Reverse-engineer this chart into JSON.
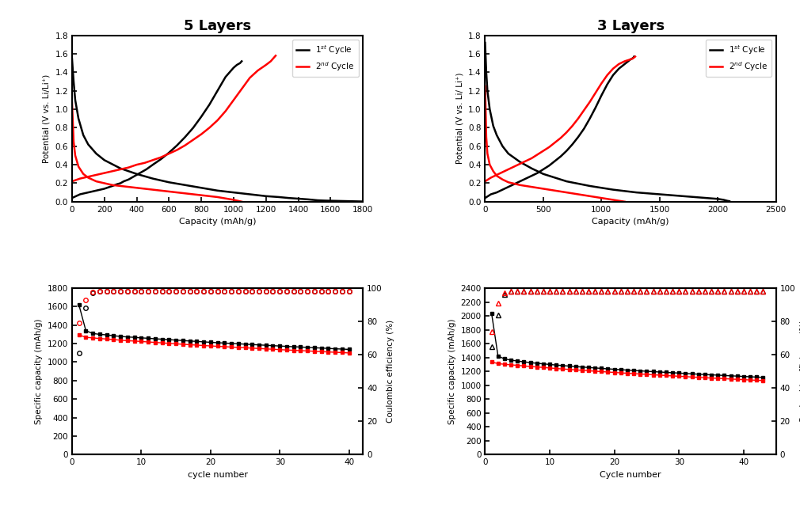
{
  "title_left": "5 Layers",
  "title_right": "3 Layers",
  "panel_top_left": {
    "xlabel": "Capacity (mAh/g)",
    "ylabel": "Potential (V vs. Li/Li⁺)",
    "xlim": [
      0,
      1800
    ],
    "ylim": [
      0.0,
      1.8
    ],
    "xticks": [
      0,
      200,
      400,
      600,
      800,
      1000,
      1200,
      1400,
      1600,
      1800
    ],
    "yticks": [
      0.0,
      0.2,
      0.4,
      0.6,
      0.8,
      1.0,
      1.2,
      1.4,
      1.6,
      1.8
    ],
    "d1x": [
      0,
      10,
      20,
      40,
      70,
      100,
      150,
      200,
      300,
      400,
      500,
      600,
      700,
      800,
      900,
      1000,
      1100,
      1200,
      1280,
      1340,
      1380,
      1420,
      1460,
      1490,
      1520,
      1560,
      1600,
      1650,
      1700,
      1750,
      1800
    ],
    "d1y": [
      1.55,
      1.3,
      1.1,
      0.9,
      0.72,
      0.62,
      0.52,
      0.45,
      0.36,
      0.3,
      0.25,
      0.21,
      0.18,
      0.15,
      0.12,
      0.1,
      0.08,
      0.06,
      0.05,
      0.04,
      0.035,
      0.03,
      0.025,
      0.02,
      0.015,
      0.012,
      0.01,
      0.008,
      0.006,
      0.004,
      0.002
    ],
    "c1x": [
      0,
      50,
      100,
      150,
      200,
      250,
      280,
      300,
      320,
      350,
      380,
      400,
      430,
      460,
      500,
      550,
      600,
      650,
      700,
      750,
      800,
      850,
      900,
      950,
      1000,
      1020,
      1040,
      1050
    ],
    "c1y": [
      0.04,
      0.08,
      0.1,
      0.12,
      0.14,
      0.17,
      0.19,
      0.2,
      0.22,
      0.24,
      0.27,
      0.29,
      0.32,
      0.35,
      0.4,
      0.46,
      0.53,
      0.61,
      0.7,
      0.8,
      0.92,
      1.05,
      1.2,
      1.35,
      1.45,
      1.48,
      1.5,
      1.52
    ],
    "d2x": [
      0,
      10,
      20,
      40,
      70,
      100,
      150,
      200,
      250,
      300,
      350,
      400,
      450,
      500,
      600,
      700,
      800,
      900,
      1000,
      1050
    ],
    "d2y": [
      1.08,
      0.65,
      0.5,
      0.38,
      0.3,
      0.26,
      0.22,
      0.2,
      0.18,
      0.17,
      0.16,
      0.15,
      0.14,
      0.13,
      0.11,
      0.09,
      0.07,
      0.05,
      0.02,
      0.0
    ],
    "c2x": [
      0,
      50,
      100,
      150,
      200,
      250,
      300,
      350,
      400,
      450,
      500,
      550,
      600,
      650,
      700,
      750,
      800,
      850,
      900,
      950,
      1000,
      1050,
      1100,
      1150,
      1200,
      1230,
      1240,
      1250,
      1255,
      1260
    ],
    "c2y": [
      0.22,
      0.25,
      0.27,
      0.29,
      0.31,
      0.33,
      0.35,
      0.37,
      0.4,
      0.42,
      0.45,
      0.48,
      0.52,
      0.56,
      0.61,
      0.67,
      0.73,
      0.8,
      0.88,
      0.98,
      1.1,
      1.22,
      1.34,
      1.42,
      1.48,
      1.52,
      1.54,
      1.56,
      1.57,
      1.58
    ]
  },
  "panel_top_right": {
    "xlabel": "Capacity (mAh/g)",
    "ylabel": "Potential (V vs. Li/ Li⁺)",
    "xlim": [
      0,
      2500
    ],
    "ylim": [
      0.0,
      1.8
    ],
    "xticks": [
      0,
      500,
      1000,
      1500,
      2000,
      2500
    ],
    "yticks": [
      0.0,
      0.2,
      0.4,
      0.6,
      0.8,
      1.0,
      1.2,
      1.4,
      1.6,
      1.8
    ],
    "d1x": [
      0,
      10,
      20,
      40,
      70,
      100,
      150,
      200,
      300,
      400,
      500,
      700,
      900,
      1100,
      1300,
      1500,
      1700,
      1900,
      2000,
      2050,
      2080,
      2100
    ],
    "d1y": [
      1.72,
      1.4,
      1.2,
      1.0,
      0.82,
      0.72,
      0.6,
      0.52,
      0.43,
      0.36,
      0.3,
      0.22,
      0.17,
      0.13,
      0.1,
      0.08,
      0.06,
      0.04,
      0.03,
      0.02,
      0.01,
      0.005
    ],
    "c1x": [
      0,
      50,
      100,
      150,
      200,
      250,
      300,
      350,
      400,
      450,
      500,
      550,
      600,
      650,
      700,
      750,
      800,
      850,
      900,
      950,
      1000,
      1050,
      1100,
      1150,
      1200,
      1230,
      1250,
      1265,
      1275,
      1280
    ],
    "c1y": [
      0.04,
      0.08,
      0.1,
      0.13,
      0.16,
      0.19,
      0.22,
      0.25,
      0.28,
      0.31,
      0.35,
      0.39,
      0.44,
      0.49,
      0.55,
      0.62,
      0.7,
      0.79,
      0.9,
      1.02,
      1.15,
      1.27,
      1.37,
      1.44,
      1.49,
      1.52,
      1.54,
      1.55,
      1.56,
      1.57
    ],
    "d2x": [
      0,
      10,
      20,
      40,
      70,
      100,
      150,
      200,
      300,
      400,
      500,
      600,
      700,
      800,
      900,
      1000,
      1100,
      1200
    ],
    "d2y": [
      1.25,
      0.7,
      0.52,
      0.4,
      0.33,
      0.28,
      0.24,
      0.21,
      0.18,
      0.16,
      0.14,
      0.12,
      0.1,
      0.08,
      0.06,
      0.04,
      0.02,
      0.0
    ],
    "c2x": [
      0,
      50,
      100,
      150,
      200,
      250,
      300,
      350,
      400,
      450,
      500,
      550,
      600,
      650,
      700,
      750,
      800,
      850,
      900,
      950,
      1000,
      1050,
      1100,
      1150,
      1200,
      1250,
      1270,
      1280,
      1285,
      1290
    ],
    "c2y": [
      0.22,
      0.26,
      0.29,
      0.32,
      0.35,
      0.38,
      0.41,
      0.44,
      0.47,
      0.51,
      0.55,
      0.59,
      0.64,
      0.69,
      0.75,
      0.82,
      0.9,
      0.99,
      1.08,
      1.18,
      1.28,
      1.37,
      1.44,
      1.49,
      1.52,
      1.54,
      1.55,
      1.56,
      1.565,
      1.57
    ]
  },
  "panel_bot_left": {
    "xlabel": "cycle number",
    "ylabel_left": "Specific capacity (mAh/g)",
    "ylabel_right": "Coulombic efficiency (%)",
    "xlim": [
      0,
      42
    ],
    "ylim_left": [
      0,
      1800
    ],
    "ylim_right": [
      0,
      100
    ],
    "xticks": [
      0,
      10,
      20,
      30,
      40
    ],
    "yticks_left": [
      0,
      200,
      400,
      600,
      800,
      1000,
      1200,
      1400,
      1600,
      1800
    ],
    "yticks_right": [
      0,
      20,
      40,
      60,
      80,
      100
    ],
    "charge_cycles": [
      1,
      2,
      3,
      4,
      5,
      6,
      7,
      8,
      9,
      10,
      11,
      12,
      13,
      14,
      15,
      16,
      17,
      18,
      19,
      20,
      21,
      22,
      23,
      24,
      25,
      26,
      27,
      28,
      29,
      30,
      31,
      32,
      33,
      34,
      35,
      36,
      37,
      38,
      39,
      40
    ],
    "charge_cap": [
      1620,
      1340,
      1310,
      1300,
      1295,
      1285,
      1278,
      1272,
      1268,
      1262,
      1258,
      1252,
      1248,
      1243,
      1238,
      1233,
      1228,
      1224,
      1219,
      1214,
      1210,
      1206,
      1202,
      1198,
      1194,
      1190,
      1186,
      1182,
      1178,
      1174,
      1170,
      1166,
      1163,
      1159,
      1155,
      1152,
      1148,
      1144,
      1141,
      1137
    ],
    "discharge_cap": [
      1295,
      1268,
      1262,
      1255,
      1250,
      1244,
      1237,
      1231,
      1228,
      1223,
      1218,
      1213,
      1208,
      1203,
      1198,
      1193,
      1188,
      1184,
      1179,
      1175,
      1171,
      1167,
      1163,
      1159,
      1155,
      1151,
      1147,
      1143,
      1139,
      1135,
      1131,
      1128,
      1124,
      1121,
      1117,
      1113,
      1110,
      1106,
      1103,
      1099
    ],
    "ce_cycles": [
      1,
      2,
      3,
      4,
      5,
      6,
      7,
      8,
      9,
      10,
      11,
      12,
      13,
      14,
      15,
      16,
      17,
      18,
      19,
      20,
      21,
      22,
      23,
      24,
      25,
      26,
      27,
      28,
      29,
      30,
      31,
      32,
      33,
      34,
      35,
      36,
      37,
      38,
      39,
      40
    ],
    "ce_black": [
      61,
      88,
      97,
      98,
      98,
      98,
      98,
      98,
      98,
      98,
      98,
      98,
      98,
      98,
      98,
      98,
      98,
      98,
      98,
      98,
      98,
      98,
      98,
      98,
      98,
      98,
      98,
      98,
      98,
      98,
      98,
      98,
      98,
      98,
      98,
      98,
      98,
      98,
      98,
      98
    ],
    "ce_red": [
      79,
      93,
      97.5,
      98,
      98,
      98,
      98,
      98,
      98,
      98,
      98,
      98,
      98,
      98,
      98,
      98,
      98,
      98,
      98,
      98,
      98,
      98,
      98,
      98,
      98,
      98,
      98,
      98,
      98,
      98,
      98,
      98,
      98,
      98,
      98,
      98,
      98,
      98,
      98,
      98
    ]
  },
  "panel_bot_right": {
    "xlabel": "Cycle number",
    "ylabel_left": "Specific capacity (mAh/g)",
    "ylabel_right": "Coulombic efficiency (%)",
    "xlim": [
      0,
      45
    ],
    "ylim_left": [
      0,
      2400
    ],
    "ylim_right": [
      0,
      100
    ],
    "xticks": [
      0,
      10,
      20,
      30,
      40
    ],
    "yticks_left": [
      0,
      200,
      400,
      600,
      800,
      1000,
      1200,
      1400,
      1600,
      1800,
      2000,
      2200,
      2400
    ],
    "yticks_right": [
      0,
      20,
      40,
      60,
      80,
      100
    ],
    "charge_cycles": [
      1,
      2,
      3,
      4,
      5,
      6,
      7,
      8,
      9,
      10,
      11,
      12,
      13,
      14,
      15,
      16,
      17,
      18,
      19,
      20,
      21,
      22,
      23,
      24,
      25,
      26,
      27,
      28,
      29,
      30,
      31,
      32,
      33,
      34,
      35,
      36,
      37,
      38,
      39,
      40,
      41,
      42,
      43
    ],
    "charge_cap": [
      2040,
      1420,
      1380,
      1362,
      1349,
      1337,
      1326,
      1316,
      1308,
      1299,
      1291,
      1283,
      1276,
      1269,
      1262,
      1255,
      1249,
      1242,
      1236,
      1230,
      1224,
      1218,
      1212,
      1207,
      1201,
      1196,
      1190,
      1185,
      1180,
      1175,
      1169,
      1164,
      1159,
      1154,
      1149,
      1145,
      1140,
      1135,
      1131,
      1126,
      1122,
      1117,
      1113
    ],
    "discharge_cap": [
      1336,
      1311,
      1302,
      1294,
      1286,
      1278,
      1270,
      1263,
      1256,
      1248,
      1241,
      1234,
      1228,
      1221,
      1215,
      1208,
      1202,
      1196,
      1190,
      1184,
      1178,
      1172,
      1167,
      1161,
      1156,
      1150,
      1145,
      1139,
      1134,
      1129,
      1124,
      1118,
      1113,
      1108,
      1103,
      1098,
      1094,
      1089,
      1084,
      1080,
      1075,
      1071,
      1067
    ],
    "ce_cycles": [
      1,
      2,
      3,
      4,
      5,
      6,
      7,
      8,
      9,
      10,
      11,
      12,
      13,
      14,
      15,
      16,
      17,
      18,
      19,
      20,
      21,
      22,
      23,
      24,
      25,
      26,
      27,
      28,
      29,
      30,
      31,
      32,
      33,
      34,
      35,
      36,
      37,
      38,
      39,
      40,
      41,
      42,
      43
    ],
    "ce_black": [
      65,
      84,
      96,
      98,
      98,
      98,
      98,
      98,
      98,
      98,
      98,
      98,
      98,
      98,
      98,
      98,
      98,
      98,
      98,
      98,
      98,
      98,
      98,
      98,
      98,
      98,
      98,
      98,
      98,
      98,
      98,
      98,
      98,
      98,
      98,
      98,
      98,
      98,
      98,
      98,
      98,
      98,
      98
    ],
    "ce_red": [
      74,
      91,
      97,
      98,
      98,
      98,
      98,
      98,
      98,
      98,
      98,
      98,
      98,
      98,
      98,
      98,
      98,
      98,
      98,
      98,
      98,
      98,
      98,
      98,
      98,
      98,
      98,
      98,
      98,
      98,
      98,
      98,
      98,
      98,
      98,
      98,
      98,
      98,
      98,
      98,
      98,
      98,
      98
    ]
  }
}
